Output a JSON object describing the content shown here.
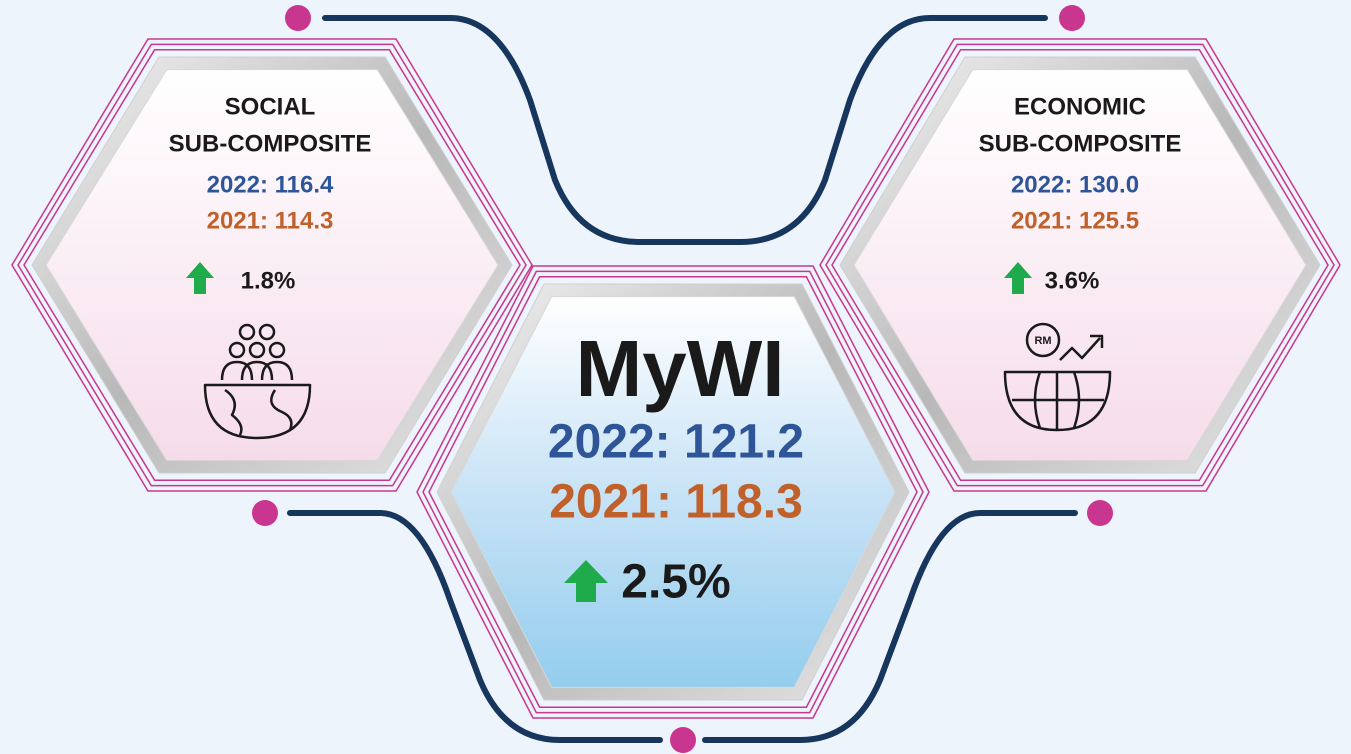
{
  "social": {
    "title_line1": "SOCIAL",
    "title_line2": "SUB-COMPOSITE",
    "value_2022": "2022: 116.4",
    "value_2021": "2021: 114.3",
    "change": "1.8%"
  },
  "center": {
    "title": "MyWI",
    "value_2022": "2022: 121.2",
    "value_2021": "2021: 118.3",
    "change": "2.5%"
  },
  "economic": {
    "title_line1": "ECONOMIC",
    "title_line2": "SUB-COMPOSITE",
    "value_2022": "2022: 130.0",
    "value_2021": "2021: 125.5",
    "change": "3.6%",
    "icon_label": "RM"
  }
}
